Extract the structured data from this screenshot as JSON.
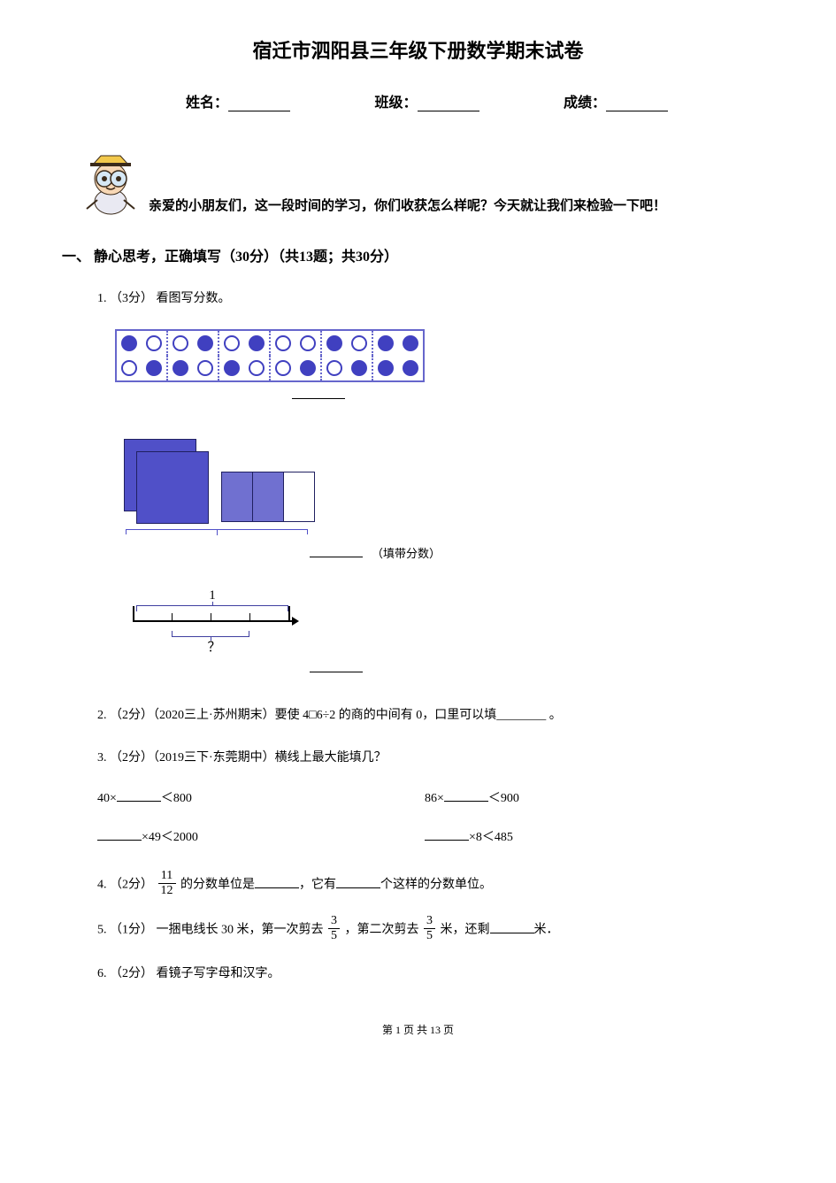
{
  "title": "宿迁市泗阳县三年级下册数学期末试卷",
  "info": {
    "name_label": "姓名：",
    "class_label": "班级：",
    "score_label": "成绩："
  },
  "greeting": "亲爱的小朋友们，这一段时间的学习，你们收获怎么样呢？今天就让我们来检验一下吧！",
  "section1": "一、 静心思考，正确填写（30分）（共13题；共30分）",
  "q1": {
    "head": "1. （3分） 看图写分数。"
  },
  "fig1": {
    "rows": 2,
    "cols": 12,
    "pairCols": 6,
    "row1": [
      "filled",
      "empty",
      "empty",
      "filled",
      "empty",
      "filled",
      "empty",
      "empty",
      "filled",
      "empty",
      "filled",
      "filled"
    ],
    "row2": [
      "empty",
      "filled",
      "filled",
      "empty",
      "filled",
      "empty",
      "empty",
      "filled",
      "empty",
      "filled",
      "filled",
      "filled"
    ],
    "border_color": "#6666cc",
    "filled_color": "#4040c0"
  },
  "fig2": {
    "whole_squares": 2,
    "parts_total": 3,
    "parts_filled": 2,
    "square_color": "#5050c8",
    "part_color": "#7070d0",
    "hint": "（填带分数）"
  },
  "fig3": {
    "top_label": "1",
    "segments": 4,
    "question_segments": 2,
    "question_mark": "？"
  },
  "q2": "2. （2分）（2020三上·苏州期末）要使 4□6÷2 的商的中间有 0，口里可以填________ 。",
  "q3": {
    "head": "3. （2分）（2019三下·东莞期中）横线上最大能填几？",
    "a": {
      "pre": "40×",
      "post": "＜800"
    },
    "b": {
      "pre": "86×",
      "post": "＜900"
    },
    "c": {
      "pre": "",
      "mid": "×49＜2000"
    },
    "d": {
      "pre": "",
      "mid": "×8＜485"
    }
  },
  "q4": {
    "pre": "4. （2分） ",
    "frac_num": "11",
    "frac_den": "12",
    "mid1": " 的分数单位是",
    "mid2": "，它有",
    "post": "个这样的分数单位。"
  },
  "q5": {
    "pre": "5. （1分）  一捆电线长 30 米，第一次剪去 ",
    "f1_num": "3",
    "f1_den": "5",
    "mid": " ，第二次剪去 ",
    "f2_num": "3",
    "f2_den": "5",
    "post1": " 米，还剩",
    "post2": "米．"
  },
  "q6": "6. （2分） 看镜子写字母和汉字。",
  "footer": {
    "pre": "第 ",
    "cur": "1",
    "mid": " 页 共 ",
    "total": "13",
    "post": " 页"
  },
  "colors": {
    "text": "#000000",
    "bg": "#ffffff",
    "accent": "#5050c8"
  },
  "mascot": {
    "hat": "#f2c84b",
    "face": "#f7d7b5",
    "body": "#e9e9f2",
    "lens": "#d6e8f5",
    "outline": "#3a2a1a"
  }
}
